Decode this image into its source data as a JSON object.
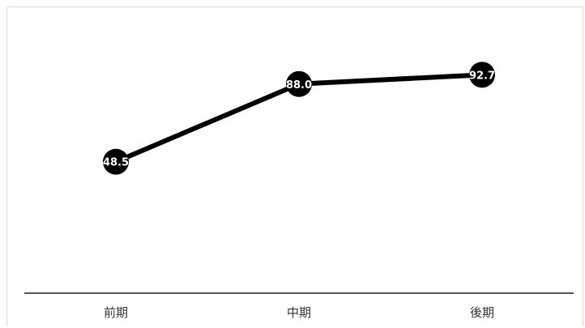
{
  "chart_data": {
    "type": "line",
    "categories": [
      "前期",
      "中期",
      "後期"
    ],
    "series": [
      {
        "values": [
          48.5,
          88.0,
          92.7
        ],
        "labels": [
          "48.5",
          "88.0",
          "92.7"
        ]
      }
    ],
    "title": "",
    "xlabel": "",
    "ylabel": "",
    "ylim": [
      0,
      100
    ],
    "grid": false,
    "legend": "none",
    "colors": {
      "line": "#000000",
      "marker": "#000000",
      "marker_label": "#ffffff",
      "axis": "#555555",
      "tick_label": "#333333",
      "frame": "#d9d9d9",
      "background": "#ffffff"
    }
  }
}
